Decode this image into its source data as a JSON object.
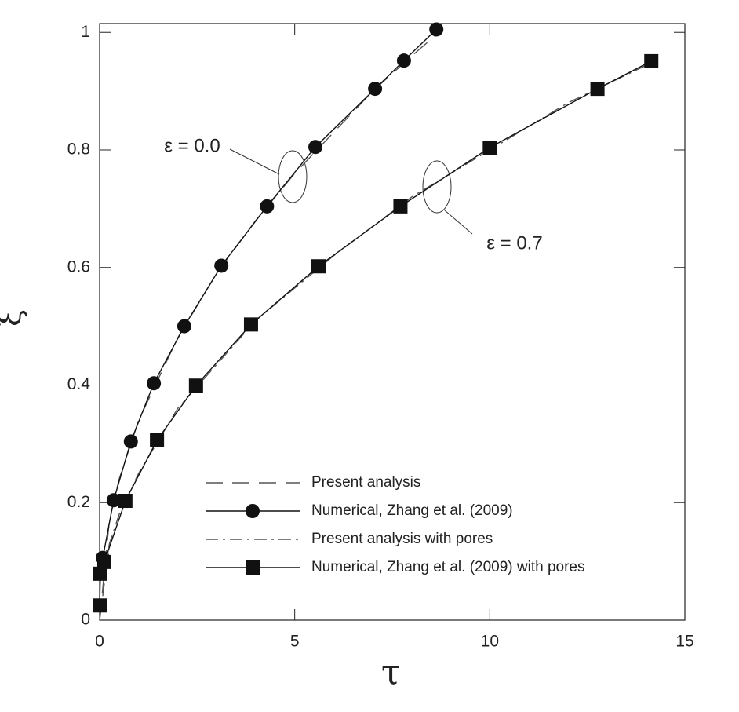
{
  "chart_data": {
    "type": "line",
    "x_label": "τ",
    "y_label": "ξ",
    "xlim": [
      0,
      15
    ],
    "ylim": [
      0,
      1.015
    ],
    "xticks": [
      0,
      5,
      10,
      15
    ],
    "yticks": [
      0,
      0.2,
      0.4,
      0.6,
      0.8,
      1
    ],
    "annotations": [
      "ε = 0.0",
      "ε = 0.7"
    ],
    "series": [
      {
        "name": "Present analysis",
        "color": "#555555",
        "style": "dashed",
        "x": [
          0,
          0.25,
          0.5,
          1,
          2,
          3,
          4,
          5,
          6,
          7,
          8,
          8.7
        ],
        "values": [
          0,
          0.17,
          0.24,
          0.34,
          0.48,
          0.59,
          0.68,
          0.76,
          0.83,
          0.9,
          0.96,
          1.0
        ]
      },
      {
        "name": "Numerical, Zhang et al. (2009)",
        "color": "#111111",
        "style": "solid",
        "marker": "circle",
        "x": [
          0.08,
          0.36,
          0.8,
          1.39,
          2.17,
          3.12,
          4.29,
          5.53,
          7.06,
          7.8,
          8.63
        ],
        "values": [
          0.106,
          0.204,
          0.304,
          0.403,
          0.5,
          0.603,
          0.704,
          0.805,
          0.904,
          0.952,
          1.005
        ]
      },
      {
        "name": "Present analysis with pores",
        "color": "#555555",
        "style": "dashdot",
        "x": [
          0,
          0.25,
          0.5,
          1,
          2,
          4,
          6,
          8,
          10,
          12,
          14.2
        ],
        "values": [
          0,
          0.13,
          0.18,
          0.25,
          0.36,
          0.51,
          0.62,
          0.72,
          0.8,
          0.88,
          0.95
        ]
      },
      {
        "name": "Numerical, Zhang et al. (2009) with pores",
        "color": "#111111",
        "style": "solid",
        "marker": "square",
        "x": [
          0,
          0.02,
          0.12,
          0.66,
          1.47,
          2.47,
          3.88,
          5.61,
          7.71,
          10.0,
          12.76,
          14.14
        ],
        "values": [
          0.025,
          0.079,
          0.099,
          0.203,
          0.306,
          0.399,
          0.503,
          0.602,
          0.704,
          0.804,
          0.904,
          0.951
        ]
      }
    ]
  }
}
